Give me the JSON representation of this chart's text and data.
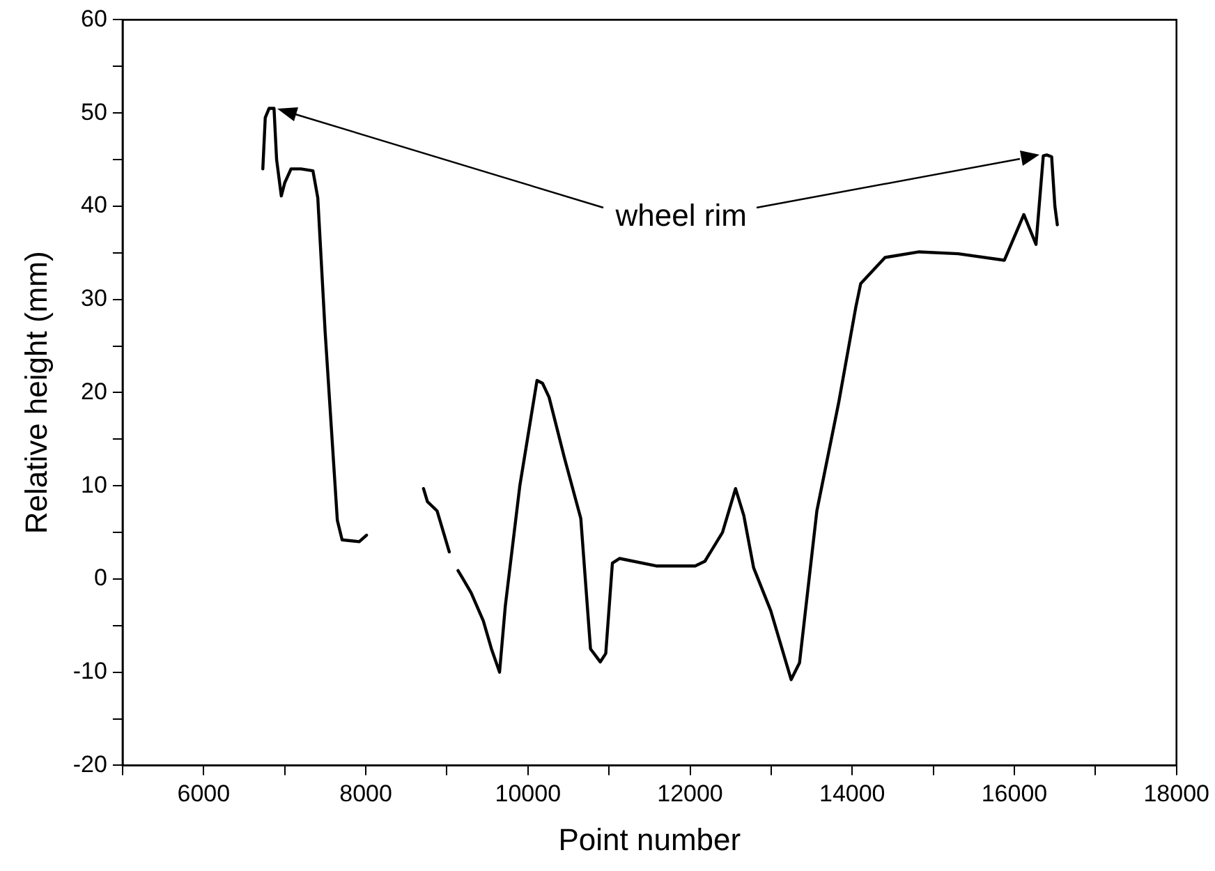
{
  "chart_data": {
    "type": "line",
    "xlabel": "Point number",
    "ylabel": "Relative height (mm)",
    "xlim": [
      5000,
      18000
    ],
    "xticks": [
      {
        "value": 5000,
        "label": null
      },
      6000,
      {
        "value": 7000,
        "label": null
      },
      8000,
      {
        "value": 9000,
        "label": null
      },
      10000,
      {
        "value": 11000,
        "label": null
      },
      12000,
      {
        "value": 13000,
        "label": null
      },
      14000,
      {
        "value": 15000,
        "label": null
      },
      16000,
      {
        "value": 17000,
        "label": null
      },
      18000
    ],
    "ylim": [
      -20,
      60
    ],
    "yticks": [
      -20,
      {
        "value": -15,
        "label": null
      },
      -10,
      {
        "value": -5,
        "label": null
      },
      0,
      {
        "value": 5,
        "label": null
      },
      10,
      {
        "value": 15,
        "label": null
      },
      20,
      {
        "value": 25,
        "label": null
      },
      30,
      {
        "value": 35,
        "label": null
      },
      40,
      {
        "value": 45,
        "label": null
      },
      50,
      {
        "value": 55,
        "label": null
      },
      60
    ],
    "grid": false,
    "legend": false,
    "marker": "none",
    "line_style": "solid",
    "annotations": [
      "wheel rim"
    ],
    "series": [
      {
        "color": "#000000",
        "x": [
          6730,
          6760,
          6808,
          6868,
          6900,
          6958,
          7000,
          7078,
          7200,
          7348,
          7408,
          7498,
          7649,
          7708,
          7919,
          8009,
          8300,
          8712,
          8760,
          8880,
          9030,
          9100,
          9138,
          9200,
          9300,
          9450,
          9550,
          9650,
          9721,
          9900,
          10112,
          10180,
          10261,
          10450,
          10652,
          10772,
          10892,
          10960,
          11042,
          11132,
          11582,
          12063,
          12183,
          12400,
          12561,
          12663,
          12784,
          12995,
          13247,
          13350,
          13564,
          13835,
          14045,
          14105,
          14405,
          14826,
          15306,
          15877,
          16117,
          16267,
          16357,
          16400,
          16460,
          16500,
          16530
        ],
        "values": [
          44.0,
          49.5,
          50.5,
          50.5,
          45,
          41.1,
          42.5,
          44.0,
          44.0,
          43.8,
          40.9,
          26.6,
          6.3,
          4.2,
          4.0,
          4.7,
          null,
          9.7,
          8.3,
          7.3,
          2.9,
          null,
          0.9,
          0,
          -1.5,
          -4.5,
          -7.5,
          -10,
          -2.9,
          10,
          21.3,
          21,
          19.5,
          13,
          6.5,
          -7.5,
          -8.9,
          -8,
          1.7,
          2.2,
          1.4,
          1.4,
          1.9,
          5,
          9.7,
          6.8,
          1.2,
          -3.4,
          -10.8,
          -9,
          7.3,
          19.0,
          29.2,
          31.7,
          34.5,
          35.1,
          34.9,
          34.2,
          39.1,
          35.9,
          45.4,
          45.5,
          45.3,
          40,
          38
        ]
      }
    ]
  }
}
